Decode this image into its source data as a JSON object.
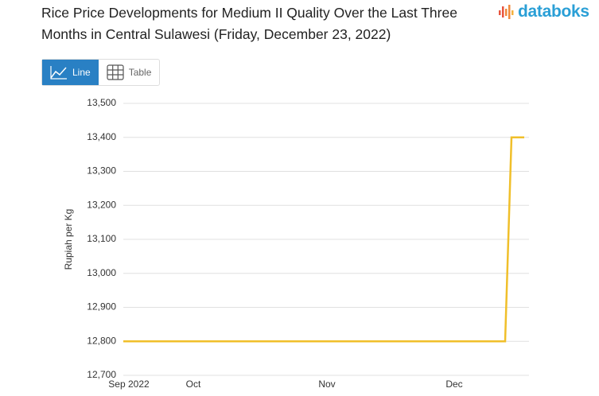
{
  "brand": "databoks",
  "tabs": [
    "Line",
    "Table"
  ],
  "chart_data": {
    "type": "line",
    "title": "Rice Price Developments for Medium II Quality Over the Last Three Months in Central Sulawesi (Friday, December 23, 2022)",
    "y_label": "Rupiah per Kg",
    "categories": [
      "Sep 2022",
      null,
      null,
      null,
      null,
      null,
      null,
      null,
      null,
      null,
      null,
      "Oct",
      null,
      null,
      null,
      null,
      null,
      null,
      null,
      null,
      null,
      null,
      null,
      null,
      null,
      null,
      null,
      null,
      null,
      null,
      null,
      null,
      "Nov",
      null,
      null,
      null,
      null,
      null,
      null,
      null,
      null,
      null,
      null,
      null,
      null,
      null,
      null,
      null,
      null,
      null,
      null,
      null,
      "Dec",
      null,
      null,
      null,
      null,
      null,
      null,
      null,
      null,
      null,
      null,
      null
    ],
    "series": [
      {
        "name": "Rupiah per Kg",
        "color": "#f0bf2a",
        "values": [
          12800,
          12800,
          12800,
          12800,
          12800,
          12800,
          12800,
          12800,
          12800,
          12800,
          12800,
          12800,
          12800,
          12800,
          12800,
          12800,
          12800,
          12800,
          12800,
          12800,
          12800,
          12800,
          12800,
          12800,
          12800,
          12800,
          12800,
          12800,
          12800,
          12800,
          12800,
          12800,
          12800,
          12800,
          12800,
          12800,
          12800,
          12800,
          12800,
          12800,
          12800,
          12800,
          12800,
          12800,
          12800,
          12800,
          12800,
          12800,
          12800,
          12800,
          12800,
          12800,
          12800,
          12800,
          12800,
          12800,
          12800,
          12800,
          12800,
          12800,
          12800,
          13400,
          13400,
          13400
        ]
      }
    ],
    "ylim": [
      12700,
      13500
    ],
    "yticks": [
      {
        "value": 12700,
        "label": "12,700"
      },
      {
        "value": 12800,
        "label": "12,800"
      },
      {
        "value": 12900,
        "label": "12,900"
      },
      {
        "value": 13000,
        "label": "13,000"
      },
      {
        "value": 13100,
        "label": "13,100"
      },
      {
        "value": 13200,
        "label": "13,200"
      },
      {
        "value": 13300,
        "label": "13,300"
      },
      {
        "value": 13400,
        "label": "13,400"
      },
      {
        "value": 13500,
        "label": "13,500"
      }
    ],
    "grid": true
  }
}
